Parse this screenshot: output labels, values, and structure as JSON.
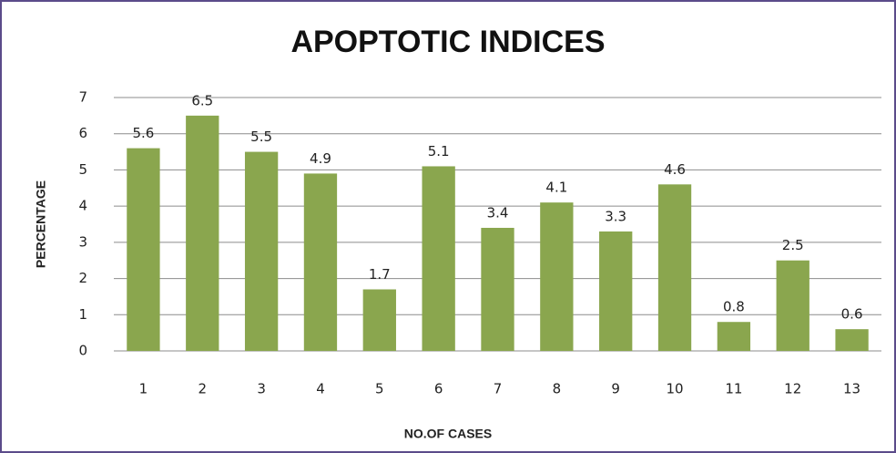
{
  "chart_data": {
    "type": "bar",
    "title": "APOPTOTIC INDICES",
    "x_label": "NO.OF CASES",
    "y_label": "PERCENTAGE",
    "categories": [
      "1",
      "2",
      "3",
      "4",
      "5",
      "6",
      "7",
      "8",
      "9",
      "10",
      "11",
      "12",
      "13"
    ],
    "values": [
      5.6,
      6.5,
      5.5,
      4.9,
      1.7,
      5.1,
      3.4,
      4.1,
      3.3,
      4.6,
      0.8,
      2.5,
      0.6
    ],
    "color": "#8aa64e",
    "ylim": [
      0,
      7
    ],
    "yticks": [
      0,
      1,
      2,
      3,
      4,
      5,
      6,
      7
    ],
    "grid": true,
    "data_labels": true
  }
}
